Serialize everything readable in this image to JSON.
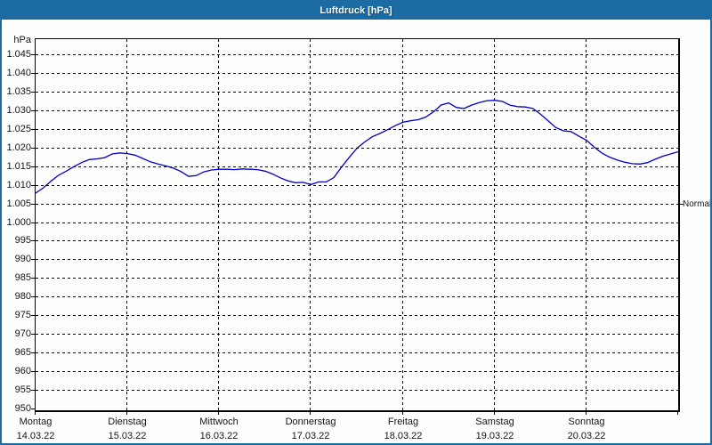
{
  "window": {
    "title": "Luftdruck [hPa]"
  },
  "colors": {
    "frame_blue": "#1c6ca3",
    "titlebar_text": "#ffffff",
    "curve_blue": "#0000c8",
    "grid_black": "#000000",
    "label_text": "#14141c",
    "plot_background": "#fdfefd"
  },
  "chart_data": {
    "type": "line",
    "title": "Luftdruck [hPa]",
    "ylabel": "hPa",
    "xlabel": "",
    "y_min": 950,
    "y_max": 1045,
    "y_step": 5,
    "ylim": [
      950,
      1045
    ],
    "grid": "dashed",
    "legend_position": "none",
    "y_ticks": [
      {
        "label": "1.045",
        "value": 1045
      },
      {
        "label": "1.040",
        "value": 1040
      },
      {
        "label": "1.035",
        "value": 1035
      },
      {
        "label": "1.030",
        "value": 1030
      },
      {
        "label": "1.025",
        "value": 1025
      },
      {
        "label": "1.020",
        "value": 1020
      },
      {
        "label": "1.015",
        "value": 1015
      },
      {
        "label": "1.010",
        "value": 1010
      },
      {
        "label": "1.005",
        "value": 1005
      },
      {
        "label": "1.000",
        "value": 1000
      },
      {
        "label": "995",
        "value": 995
      },
      {
        "label": "990",
        "value": 990
      },
      {
        "label": "985",
        "value": 985
      },
      {
        "label": "980",
        "value": 980
      },
      {
        "label": "975",
        "value": 975
      },
      {
        "label": "970",
        "value": 970
      },
      {
        "label": "965",
        "value": 965
      },
      {
        "label": "960",
        "value": 960
      },
      {
        "label": "955",
        "value": 955
      },
      {
        "label": "950",
        "value": 950
      }
    ],
    "days": [
      {
        "name": "Montag",
        "date": "14.03.22"
      },
      {
        "name": "Dienstag",
        "date": "15.03.22"
      },
      {
        "name": "Mittwoch",
        "date": "16.03.22"
      },
      {
        "name": "Donnerstag",
        "date": "17.03.22"
      },
      {
        "name": "Freitag",
        "date": "18.03.22"
      },
      {
        "name": "Samstag",
        "date": "19.03.22"
      },
      {
        "name": "Sonntag",
        "date": "20.03.22"
      }
    ],
    "x_range_hours": 168,
    "sample_interval_hours": 2,
    "normal_marker": {
      "label": "Normal",
      "value_hpa": 1005
    },
    "series": [
      {
        "name": "Luftdruck",
        "unit": "hPa",
        "color": "#0000c8",
        "values_hpa": [
          1008.0,
          1009.4,
          1011.2,
          1012.8,
          1013.9,
          1015.1,
          1016.2,
          1017.0,
          1017.2,
          1017.5,
          1018.5,
          1018.8,
          1018.6,
          1018.2,
          1017.3,
          1016.4,
          1015.8,
          1015.3,
          1014.7,
          1013.8,
          1012.5,
          1012.7,
          1013.7,
          1014.2,
          1014.4,
          1014.4,
          1014.3,
          1014.5,
          1014.4,
          1014.3,
          1013.9,
          1013.1,
          1012.1,
          1011.3,
          1010.8,
          1010.9,
          1010.3,
          1011.0,
          1011.0,
          1012.2,
          1015.0,
          1017.6,
          1020.0,
          1021.7,
          1023.1,
          1024.0,
          1025.0,
          1026.1,
          1027.0,
          1027.4,
          1027.7,
          1028.4,
          1029.8,
          1031.6,
          1032.2,
          1031.0,
          1030.7,
          1031.6,
          1032.3,
          1032.8,
          1032.9,
          1032.6,
          1031.6,
          1031.2,
          1031.1,
          1030.7,
          1029.2,
          1027.4,
          1025.6,
          1024.7,
          1024.5,
          1023.3,
          1022.2,
          1020.4,
          1018.8,
          1017.7,
          1016.9,
          1016.3,
          1015.9,
          1015.8,
          1016.2,
          1017.1,
          1017.9,
          1018.5,
          1019.1
        ]
      }
    ]
  }
}
